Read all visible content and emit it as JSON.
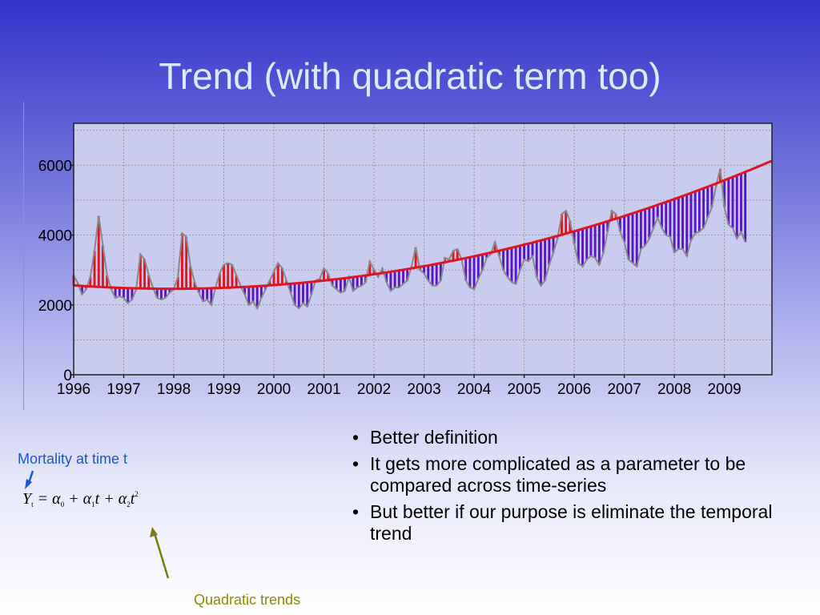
{
  "slide": {
    "title": "Trend (with quadratic term too)",
    "bullets": [
      "Better definition",
      "It gets more complicated as a parameter to be compared across time-series",
      " But better if our purpose is eliminate the temporal trend"
    ],
    "bullet_glyph": "•",
    "annotation_mortality": "Mortality at time t",
    "annotation_quadratic": "Quadratic trends",
    "formula": {
      "lhs": "Y",
      "lhs_sub": "t",
      "eq": "=",
      "a0": "α",
      "a0_sub": "0",
      "plus1": "+",
      "a1": "α",
      "a1_sub": "1",
      "t1": "t",
      "plus2": "+",
      "a2": "α",
      "a2_sub": "2",
      "t2": "t",
      "t2_pow": "2"
    },
    "colors": {
      "title": "#d8ecff",
      "mortality_label": "#1a57d6",
      "quadratic_label": "#8c8c00",
      "above_trend": "#e0141e",
      "below_trend": "#5a14c8",
      "trend_line": "#e0141e",
      "series_line": "#888888"
    }
  },
  "chart_data": {
    "type": "line",
    "title": "",
    "xlabel": "",
    "ylabel": "",
    "x_ticks": [
      "1996",
      "1997",
      "1998",
      "1999",
      "2000",
      "2001",
      "2002",
      "2003",
      "2004",
      "2005",
      "2006",
      "2007",
      "2008",
      "2009"
    ],
    "y_ticks": [
      "0",
      "2000",
      "4000",
      "6000"
    ],
    "xlim": [
      1996,
      2009.95
    ],
    "ylim": [
      0,
      7200
    ],
    "grid": true,
    "trend": {
      "type": "quadratic",
      "a0": 2560,
      "a1": -100,
      "a2": 25.5
    },
    "series": [
      {
        "name": "",
        "start": 1996,
        "step": 0.083333,
        "values": [
          2850,
          2620,
          2300,
          2450,
          2800,
          3550,
          4550,
          3700,
          2850,
          2450,
          2200,
          2250,
          2200,
          2050,
          2150,
          2450,
          3450,
          3300,
          2850,
          2500,
          2200,
          2150,
          2200,
          2350,
          2450,
          2800,
          4050,
          3950,
          3100,
          2650,
          2350,
          2100,
          2150,
          2000,
          2500,
          2900,
          3150,
          3200,
          3150,
          2850,
          2550,
          2300,
          2000,
          2100,
          1900,
          2200,
          2450,
          2700,
          2950,
          3200,
          3050,
          2700,
          2350,
          2000,
          1900,
          2050,
          1950,
          2300,
          2700,
          2750,
          3050,
          2900,
          2550,
          2450,
          2350,
          2400,
          2800,
          2400,
          2500,
          2550,
          2650,
          3250,
          3000,
          2800,
          3050,
          2650,
          2400,
          2500,
          2500,
          2600,
          2700,
          3100,
          3650,
          3000,
          2900,
          2700,
          2550,
          2550,
          2700,
          3350,
          3300,
          3550,
          3600,
          3300,
          2700,
          2500,
          2450,
          2750,
          3000,
          3350,
          3450,
          3800,
          3400,
          3000,
          2800,
          2650,
          2600,
          3000,
          3300,
          3250,
          3400,
          2800,
          2550,
          2700,
          3150,
          3500,
          3900,
          4600,
          4700,
          4400,
          3750,
          3200,
          3100,
          3300,
          3400,
          3350,
          3150,
          3500,
          4100,
          4700,
          4600,
          4100,
          3800,
          3300,
          3200,
          3100,
          3600,
          3700,
          3900,
          4200,
          4500,
          4200,
          4000,
          3950,
          3500,
          3600,
          3600,
          3400,
          3850,
          4050,
          4100,
          4200,
          4500,
          4800,
          5400,
          5900,
          4800,
          4300,
          4200,
          3900,
          4100,
          3800
        ]
      }
    ]
  }
}
